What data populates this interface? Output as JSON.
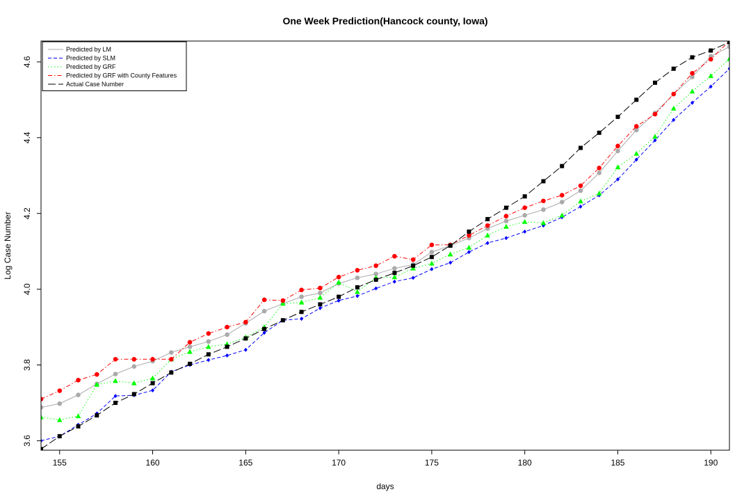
{
  "chart_data": {
    "type": "line",
    "title": "One Week Prediction(Hancock county, Iowa)",
    "xlabel": "days",
    "ylabel": "Log Case Number",
    "xlim": [
      154,
      191
    ],
    "ylim": [
      3.575,
      4.655
    ],
    "xticks": [
      155,
      160,
      165,
      170,
      175,
      180,
      185,
      190
    ],
    "yticks": [
      3.6,
      3.8,
      4.0,
      4.2,
      4.4,
      4.6
    ],
    "legend_position": "top-left",
    "grid": false,
    "x": [
      154,
      155,
      156,
      157,
      158,
      159,
      160,
      161,
      162,
      163,
      164,
      165,
      166,
      167,
      168,
      169,
      170,
      171,
      172,
      173,
      174,
      175,
      176,
      177,
      178,
      179,
      180,
      181,
      182,
      183,
      184,
      185,
      186,
      187,
      188,
      189,
      190,
      191
    ],
    "series": [
      {
        "name": "Predicted by LM",
        "color": "#aaaaaa",
        "line": "solid",
        "marker": "circle",
        "values": [
          3.688,
          3.698,
          3.721,
          3.75,
          3.776,
          3.796,
          3.81,
          3.833,
          3.848,
          3.862,
          3.88,
          3.91,
          3.942,
          3.962,
          3.98,
          3.99,
          4.015,
          4.03,
          4.04,
          4.055,
          4.065,
          4.098,
          4.115,
          4.135,
          4.16,
          4.18,
          4.195,
          4.21,
          4.23,
          4.26,
          4.307,
          4.365,
          4.42,
          4.465,
          4.515,
          4.56,
          4.615,
          4.64
        ]
      },
      {
        "name": "Predicted by SLM",
        "color": "#0000ff",
        "line": "dashed",
        "marker": "diamond",
        "values": [
          3.6,
          3.612,
          3.642,
          3.672,
          3.718,
          3.72,
          3.733,
          3.782,
          3.8,
          3.813,
          3.825,
          3.84,
          3.885,
          3.918,
          3.922,
          3.95,
          3.97,
          3.982,
          4.002,
          4.02,
          4.03,
          4.053,
          4.07,
          4.098,
          4.122,
          4.135,
          4.152,
          4.168,
          4.19,
          4.218,
          4.248,
          4.29,
          4.342,
          4.393,
          4.447,
          4.492,
          4.535,
          4.582
        ]
      },
      {
        "name": "Predicted by GRF",
        "color": "#00ff00",
        "line": "dotted",
        "marker": "triangle",
        "values": [
          3.662,
          3.655,
          3.665,
          3.748,
          3.758,
          3.752,
          3.765,
          3.815,
          3.835,
          3.848,
          3.855,
          3.873,
          3.9,
          3.962,
          3.965,
          3.978,
          4.018,
          3.993,
          4.03,
          4.032,
          4.055,
          4.068,
          4.092,
          4.11,
          4.142,
          4.165,
          4.178,
          4.175,
          4.195,
          4.232,
          4.253,
          4.322,
          4.358,
          4.403,
          4.477,
          4.522,
          4.563,
          4.608
        ]
      },
      {
        "name": "Predicted by GRF with County Features",
        "color": "#ff0000",
        "line": "dashdot",
        "marker": "circle",
        "values": [
          3.71,
          3.732,
          3.76,
          3.775,
          3.815,
          3.815,
          3.815,
          3.815,
          3.86,
          3.883,
          3.9,
          3.913,
          3.972,
          3.97,
          3.998,
          4.003,
          4.032,
          4.05,
          4.062,
          4.087,
          4.078,
          4.117,
          4.117,
          4.142,
          4.168,
          4.193,
          4.215,
          4.233,
          4.248,
          4.273,
          4.32,
          4.378,
          4.43,
          4.462,
          4.515,
          4.57,
          4.607,
          4.655
        ]
      },
      {
        "name": "Actual Case Number",
        "color": "#000000",
        "line": "longdash",
        "marker": "square",
        "values": [
          3.578,
          3.612,
          3.638,
          3.667,
          3.7,
          3.723,
          3.752,
          3.78,
          3.803,
          3.828,
          3.848,
          3.87,
          3.895,
          3.918,
          3.94,
          3.96,
          3.98,
          4.005,
          4.025,
          4.043,
          4.062,
          4.085,
          4.115,
          4.152,
          4.185,
          4.215,
          4.245,
          4.285,
          4.325,
          4.373,
          4.413,
          4.455,
          4.5,
          4.545,
          4.582,
          4.612,
          4.63,
          4.652
        ]
      }
    ]
  }
}
